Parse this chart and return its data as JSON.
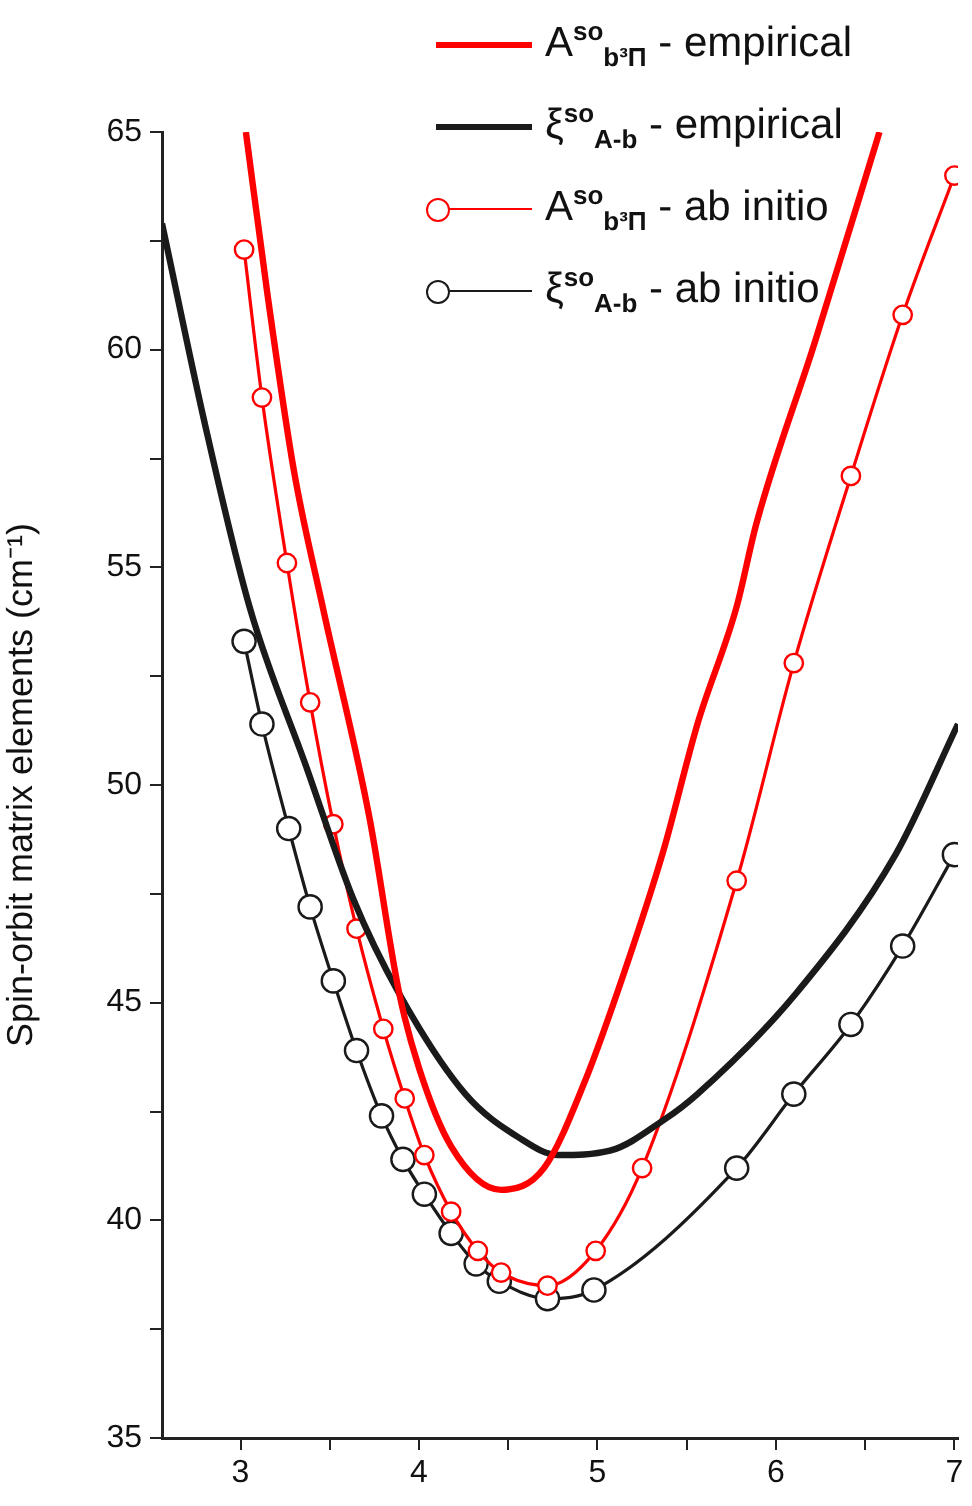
{
  "chart_data": {
    "type": "line",
    "ylabel": "Spin-orbit matrix elements (cm⁻¹)",
    "xlim": [
      2.56,
      7.02
    ],
    "ylim": [
      35,
      65
    ],
    "xticks": [
      3,
      {
        "value": 3.5,
        "label": null
      },
      4,
      {
        "value": 4.5,
        "label": null
      },
      5,
      {
        "value": 5.5,
        "label": null
      },
      6,
      {
        "value": 6.5,
        "label": null
      },
      7
    ],
    "yticks": [
      35,
      {
        "value": 37.5,
        "label": null
      },
      40,
      {
        "value": 42.5,
        "label": null
      },
      45,
      {
        "value": 47.5,
        "label": null
      },
      50,
      {
        "value": 52.5,
        "label": null
      },
      55,
      {
        "value": 57.5,
        "label": null
      },
      60,
      {
        "value": 62.5,
        "label": null
      },
      65
    ],
    "grid": false,
    "legend": "top right",
    "series": [
      {
        "name": "A$^{so}$$_{b³Π}$ - empirical",
        "color": "#ff0000",
        "marker": "none",
        "line_style": "solid",
        "x": [
          3.03,
          3.15,
          3.3,
          3.46,
          3.72,
          3.89,
          4.0,
          4.18,
          4.46,
          4.7,
          4.93,
          5.15,
          5.37,
          5.56,
          5.78,
          5.89,
          6.22,
          6.58
        ],
        "values": [
          65,
          61.3,
          57.2,
          54.1,
          49.3,
          45.2,
          43.5,
          41.7,
          40.7,
          41.2,
          43.2,
          45.7,
          48.5,
          51.4,
          54.1,
          56.0,
          60.2,
          65
        ]
      },
      {
        "name": "ξ$^{so}$$_{A-b}$ - empirical",
        "color": "#1a1a1a",
        "marker": "none",
        "line_style": "solid",
        "x": [
          2.56,
          2.8,
          3.05,
          3.37,
          3.63,
          3.89,
          4.26,
          4.56,
          4.78,
          5.07,
          5.37,
          5.56,
          6.11,
          6.67,
          7.02
        ],
        "values": [
          62.9,
          58.3,
          54.1,
          50.4,
          47.4,
          45.2,
          42.9,
          41.9,
          41.5,
          41.6,
          42.3,
          42.9,
          45.2,
          48.4,
          51.4
        ]
      },
      {
        "name": "A$^{so}$$_{b³Π}$ - ab initio",
        "color": "#ff0000",
        "marker": "circle",
        "line_style": "solid",
        "x": [
          3.02,
          3.12,
          3.26,
          3.39,
          3.52,
          3.65,
          3.8,
          3.92,
          4.03,
          4.18,
          4.33,
          4.46,
          4.72,
          4.99,
          5.25,
          5.78,
          6.1,
          6.42,
          6.71,
          7.0
        ],
        "values": [
          62.3,
          58.9,
          55.1,
          51.9,
          49.1,
          46.7,
          44.4,
          42.8,
          41.5,
          40.2,
          39.3,
          38.8,
          38.5,
          39.3,
          41.2,
          47.8,
          52.8,
          57.1,
          60.8,
          64.0
        ]
      },
      {
        "name": "ξ$^{so}$$_{A-b}$ - ab initio",
        "color": "#1a1a1a",
        "marker": "circle",
        "line_style": "solid",
        "x": [
          3.02,
          3.12,
          3.27,
          3.39,
          3.52,
          3.65,
          3.79,
          3.91,
          4.03,
          4.18,
          4.32,
          4.45,
          4.72,
          4.98,
          5.78,
          6.1,
          6.42,
          6.71,
          7.0
        ],
        "values": [
          53.3,
          51.4,
          49.0,
          47.2,
          45.5,
          43.9,
          42.4,
          41.4,
          40.6,
          39.7,
          39.0,
          38.6,
          38.2,
          38.4,
          41.2,
          42.9,
          44.5,
          46.3,
          48.4
        ]
      }
    ]
  }
}
